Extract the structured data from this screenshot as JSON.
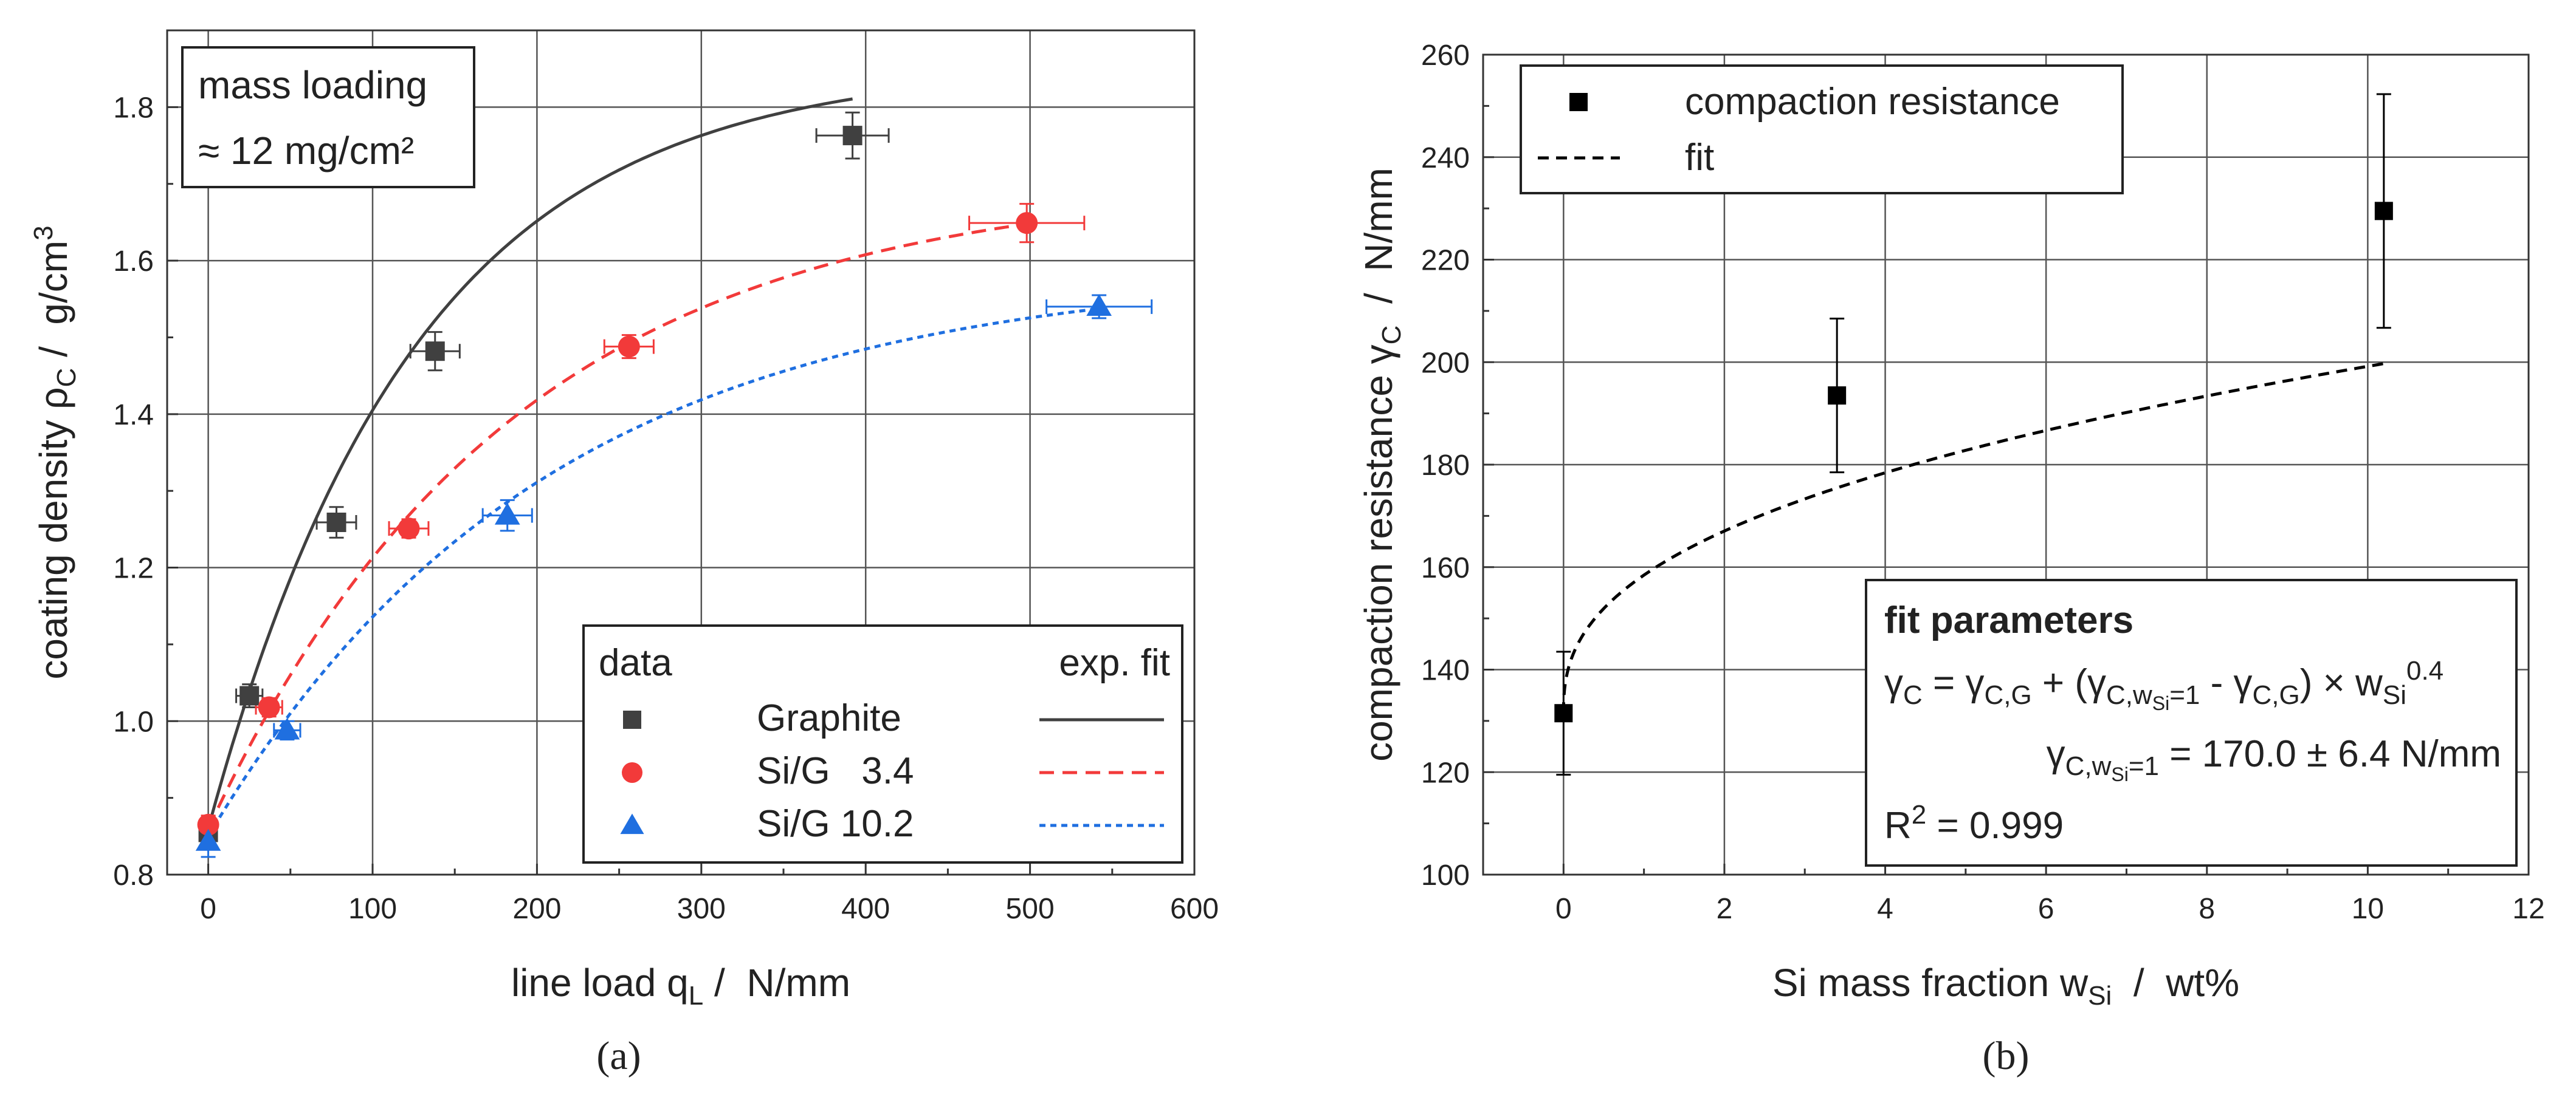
{
  "chart_data": [
    {
      "type": "scatter",
      "panel_label": "(a)",
      "title": "",
      "xlabel": {
        "main": "line load q",
        "sub": "L",
        "unit": " /  N/mm"
      },
      "ylabel": {
        "main": "coating density ρ",
        "sub": "C",
        "unit": " /  g/cm",
        "sup": "3"
      },
      "xlim": [
        -25,
        600
      ],
      "ylim": [
        0.8,
        1.9
      ],
      "xticks": [
        "0",
        "100",
        "200",
        "300",
        "400",
        "500",
        "600"
      ],
      "xtick_values": [
        0,
        100,
        200,
        300,
        400,
        500,
        600
      ],
      "yticks": [
        "0.8",
        "1.0",
        "1.2",
        "1.4",
        "1.6",
        "1.8"
      ],
      "ytick_values": [
        0.8,
        1.0,
        1.2,
        1.4,
        1.6,
        1.8
      ],
      "grid": true,
      "annotation": {
        "line1": "mass loading",
        "line2": "≈ 12 mg/cm²"
      },
      "legend": {
        "position": "bottom-right",
        "header_left": "data",
        "header_right": "exp. fit"
      },
      "series": [
        {
          "name": "Graphite",
          "color": "#404040",
          "marker": "square",
          "fit_style": "solid",
          "points": [
            {
              "x": 0,
              "y": 0.855,
              "xerr": 4,
              "yerr": 0.012
            },
            {
              "x": 25,
              "y": 1.033,
              "xerr": 8,
              "yerr": 0.015
            },
            {
              "x": 78,
              "y": 1.259,
              "xerr": 12,
              "yerr": 0.02
            },
            {
              "x": 138,
              "y": 1.482,
              "xerr": 15,
              "yerr": 0.025
            },
            {
              "x": 392,
              "y": 1.763,
              "xerr": 22,
              "yerr": 0.03
            }
          ],
          "fit": {
            "a": 0.86,
            "b": 0.995,
            "tau": 126,
            "xmax": 392
          }
        },
        {
          "name": "Si/G   3.4",
          "color": "#f23a3a",
          "marker": "circle",
          "fit_style": "dashed",
          "points": [
            {
              "x": 0,
              "y": 0.865,
              "xerr": 4,
              "yerr": 0.012
            },
            {
              "x": 37,
              "y": 1.018,
              "xerr": 8,
              "yerr": 0.012
            },
            {
              "x": 122,
              "y": 1.251,
              "xerr": 12,
              "yerr": 0.012
            },
            {
              "x": 256,
              "y": 1.488,
              "xerr": 15,
              "yerr": 0.015
            },
            {
              "x": 498,
              "y": 1.649,
              "xerr": 35,
              "yerr": 0.025
            }
          ],
          "fit": {
            "a": 0.86,
            "b": 0.845,
            "tau": 185,
            "xmax": 498
          }
        },
        {
          "name": "Si/G 10.2",
          "color": "#1f6fe0",
          "marker": "triangle",
          "fit_style": "dotted",
          "points": [
            {
              "x": 0,
              "y": 0.843,
              "xerr": 4,
              "yerr": 0.02
            },
            {
              "x": 48,
              "y": 0.988,
              "xerr": 8,
              "yerr": 0.012
            },
            {
              "x": 182,
              "y": 1.268,
              "xerr": 15,
              "yerr": 0.02
            },
            {
              "x": 542,
              "y": 1.54,
              "xerr": 32,
              "yerr": 0.015
            }
          ],
          "fit": {
            "a": 0.85,
            "b": 0.74,
            "tau": 205,
            "xmax": 542
          }
        }
      ]
    },
    {
      "type": "scatter",
      "panel_label": "(b)",
      "title": "",
      "xlabel": {
        "main": "Si mass fraction w",
        "sub": "Si",
        "unit": "  /  wt%"
      },
      "ylabel": {
        "main": "compaction resistance γ",
        "sub": "C",
        "unit": "  /  N/mm"
      },
      "xlim": [
        -1,
        12
      ],
      "ylim": [
        100,
        260
      ],
      "xticks": [
        "0",
        "2",
        "4",
        "6",
        "8",
        "10",
        "12"
      ],
      "xtick_values": [
        0,
        2,
        4,
        6,
        8,
        10,
        12
      ],
      "yticks": [
        "100",
        "120",
        "140",
        "160",
        "180",
        "200",
        "220",
        "240",
        "260"
      ],
      "ytick_values": [
        100,
        120,
        140,
        160,
        180,
        200,
        220,
        240,
        260
      ],
      "grid": true,
      "legend": {
        "position": "top-left",
        "data_label": "compaction resistance",
        "fit_label": "fit"
      },
      "series": [
        {
          "name": "compaction resistance",
          "color": "#000000",
          "marker": "square",
          "points": [
            {
              "x": 0,
              "y": 131.5,
              "yerr": 12
            },
            {
              "x": 3.4,
              "y": 193.5,
              "yerr": 15
            },
            {
              "x": 10.2,
              "y": 229.5,
              "yerr": 22.8
            }
          ],
          "fit": {
            "name": "fit",
            "y0": 131.5,
            "k": 170.0,
            "exponent": 0.4,
            "unit_scale": 100
          }
        }
      ],
      "fit_box": {
        "title": "fit parameters",
        "equation": "γC = γC,G + (γC,wSi=1 - γC,G) × wSi0.4",
        "param": "γC,wSi=1 = 170.0 ± 6.4 N/mm",
        "r2_label": "R2 = 0.999",
        "r2_value": "0.999"
      }
    }
  ]
}
